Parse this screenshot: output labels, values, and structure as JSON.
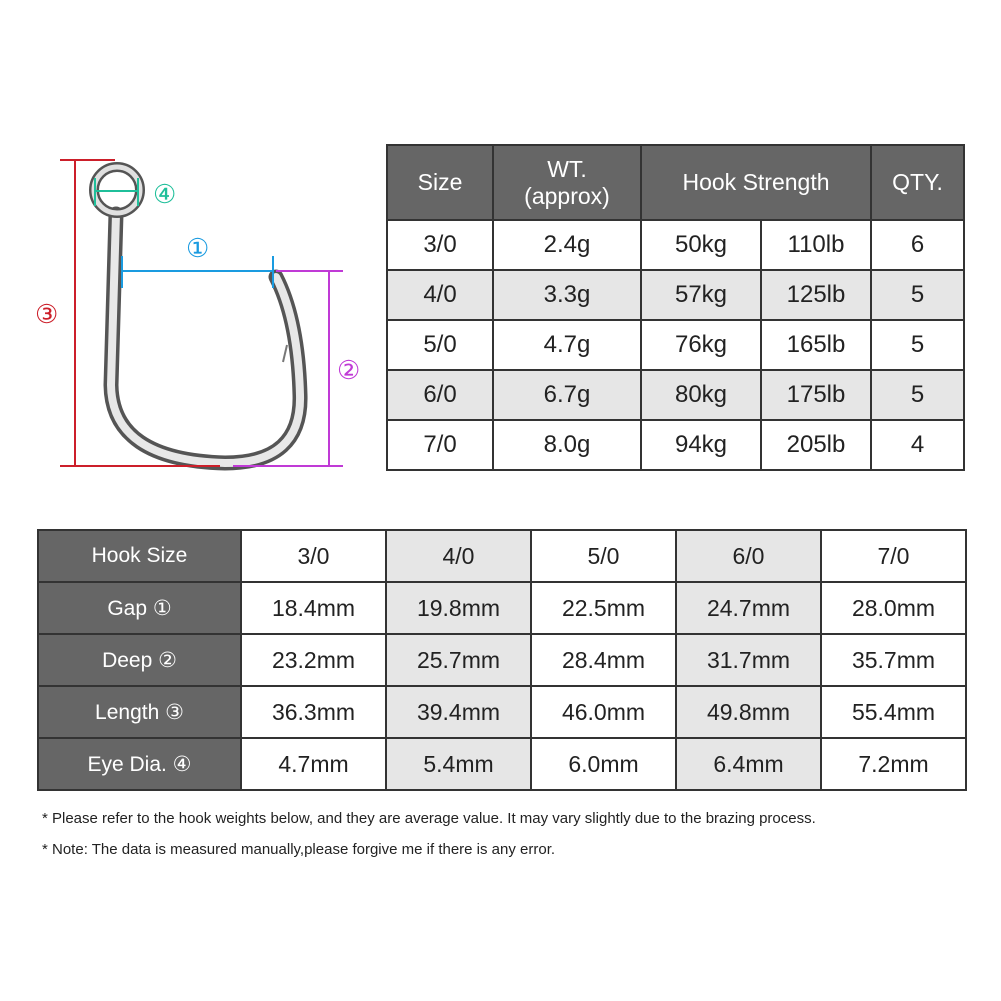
{
  "diagram": {
    "labels": [
      "①",
      "②",
      "③",
      "④"
    ],
    "colors": {
      "gap": "#1a9be0",
      "deep": "#c03ad6",
      "length": "#cc1f2a",
      "eye": "#1fbf9a"
    }
  },
  "weight_table": {
    "headers": {
      "size": "Size",
      "wt_line1": "WT.",
      "wt_line2": "(approx)",
      "strength": "Hook Strength",
      "qty": "QTY."
    },
    "rows": [
      {
        "size": "3/0",
        "wt": "2.4g",
        "kg": "50kg",
        "lb": "110lb",
        "qty": "6"
      },
      {
        "size": "4/0",
        "wt": "3.3g",
        "kg": "57kg",
        "lb": "125lb",
        "qty": "5"
      },
      {
        "size": "5/0",
        "wt": "4.7g",
        "kg": "76kg",
        "lb": "165lb",
        "qty": "5"
      },
      {
        "size": "6/0",
        "wt": "6.7g",
        "kg": "80kg",
        "lb": "175lb",
        "qty": "5"
      },
      {
        "size": "7/0",
        "wt": "8.0g",
        "kg": "94kg",
        "lb": "205lb",
        "qty": "4"
      }
    ]
  },
  "dimension_table": {
    "header": "Hook Size",
    "sizes": [
      "3/0",
      "4/0",
      "5/0",
      "6/0",
      "7/0"
    ],
    "rows": [
      {
        "label": "Gap ①",
        "values": [
          "18.4mm",
          "19.8mm",
          "22.5mm",
          "24.7mm",
          "28.0mm"
        ]
      },
      {
        "label": "Deep ②",
        "values": [
          "23.2mm",
          "25.7mm",
          "28.4mm",
          "31.7mm",
          "35.7mm"
        ]
      },
      {
        "label": "Length ③",
        "values": [
          "36.3mm",
          "39.4mm",
          "46.0mm",
          "49.8mm",
          "55.4mm"
        ]
      },
      {
        "label": "Eye Dia. ④",
        "values": [
          "4.7mm",
          "5.4mm",
          "6.0mm",
          "6.4mm",
          "7.2mm"
        ]
      }
    ]
  },
  "notes": [
    "* Please refer to the hook weights below, and they are average value. It may vary slightly due to the brazing process.",
    "* Note: The data is measured manually,please forgive me if there is any error."
  ]
}
